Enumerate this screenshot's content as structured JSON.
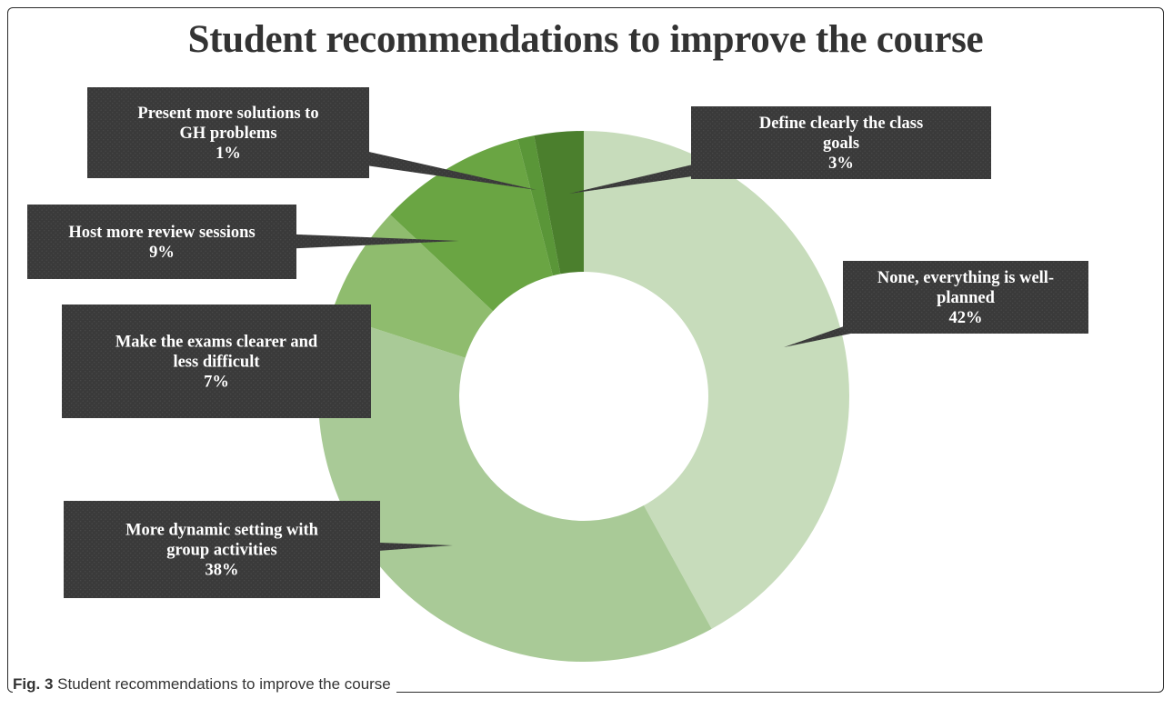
{
  "chart_data": {
    "type": "pie",
    "variant": "donut",
    "title": "Student recommendations to improve the course",
    "slices": [
      {
        "label": "None, everything is well-planned",
        "value": 42,
        "value_label": "42%",
        "color": "#c7dcbb"
      },
      {
        "label": "More dynamic setting with group activities",
        "value": 38,
        "value_label": "38%",
        "color": "#a9ca97"
      },
      {
        "label": "Make the exams clearer and less difficult",
        "value": 7,
        "value_label": "7%",
        "color": "#8fbc6e"
      },
      {
        "label": "Host more review sessions",
        "value": 9,
        "value_label": "9%",
        "color": "#6aa543"
      },
      {
        "label": "Present more solutions to GH problems",
        "value": 1,
        "value_label": "1%",
        "color": "#5a9638"
      },
      {
        "label": "Define clearly the class goals",
        "value": 3,
        "value_label": "3%",
        "color": "#4b7f2d"
      }
    ],
    "callouts": [
      {
        "lines": [
          "None, everything is well-",
          "planned",
          "42%"
        ]
      },
      {
        "lines": [
          "More dynamic setting with",
          "group activities",
          "38%"
        ]
      },
      {
        "lines": [
          "Make the exams clearer and",
          "less difficult",
          "7%"
        ]
      },
      {
        "lines": [
          "Host more review sessions",
          "9%"
        ]
      },
      {
        "lines": [
          "Present more solutions to",
          "GH problems",
          "1%"
        ]
      },
      {
        "lines": [
          "Define clearly the class",
          "goals",
          "3%"
        ]
      }
    ]
  },
  "caption": {
    "prefix": "Fig. 3",
    "text": " Student recommendations to improve the course"
  }
}
